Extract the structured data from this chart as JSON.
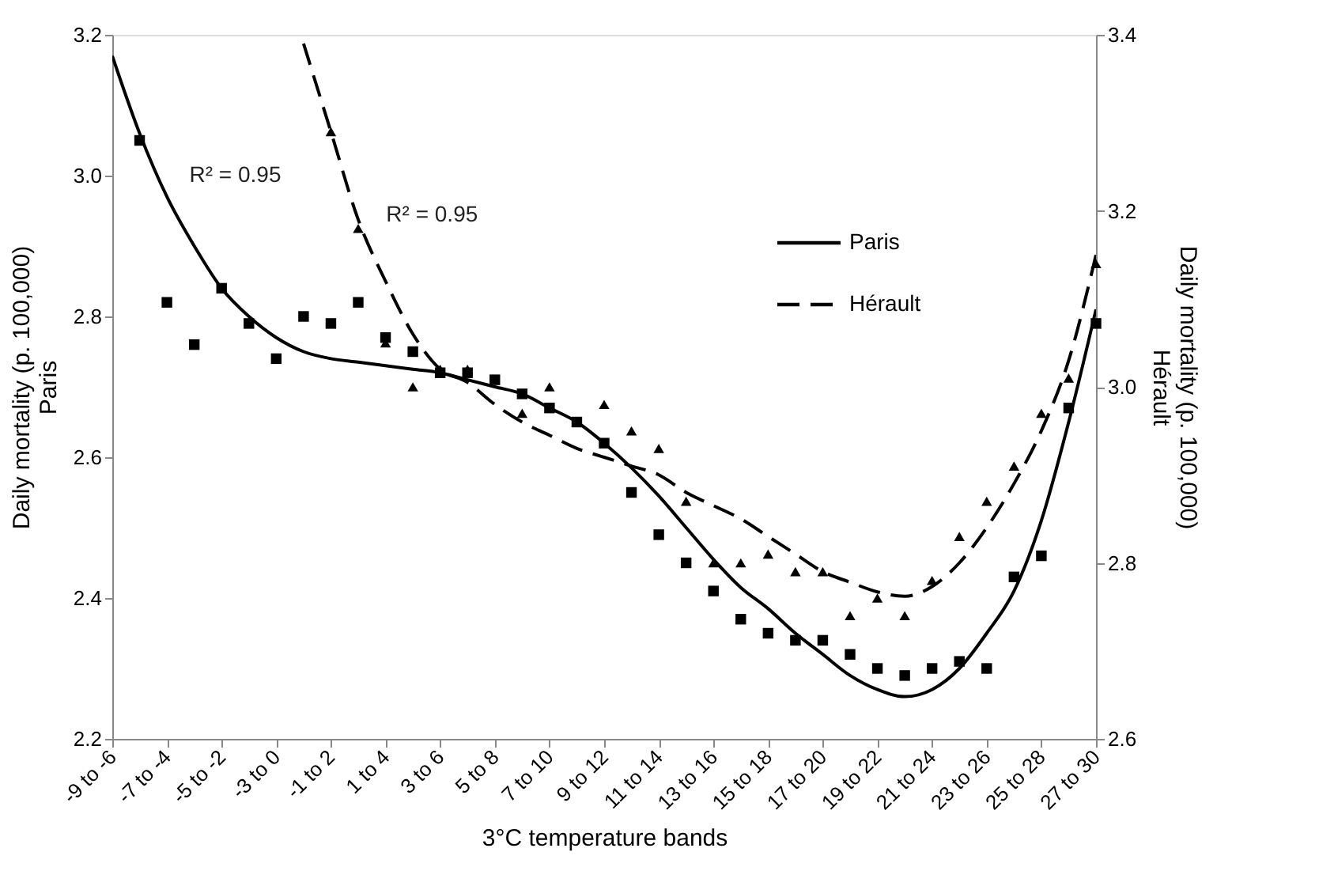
{
  "chart_data": {
    "type": "scatter",
    "xlabel": "3°C temperature bands",
    "ylabel": "Daily mortality (p. 100,000)\nParis",
    "y2label": "Daily mortality (p. 100,000)\nHérault",
    "categories": [
      "-9 to -6",
      null,
      "-7 to -4",
      null,
      "-5 to -2",
      null,
      "-3 to 0",
      null,
      "-1 to 2",
      null,
      "1 to 4",
      null,
      "3 to 6",
      null,
      "5 to 8",
      null,
      "7 to 10",
      null,
      "9 to 12",
      null,
      "11 to 14",
      null,
      "13 to 16",
      null,
      "15 to 18",
      null,
      "17 to 20",
      null,
      "19 to 22",
      null,
      "21 to 24",
      null,
      "23 to 26",
      null,
      "25 to 28",
      null,
      "27 to 30"
    ],
    "ylim": [
      2.2,
      3.2
    ],
    "yticks": [
      2.2,
      2.4,
      2.6,
      2.8,
      {
        "value": 3,
        "label": "3.0"
      },
      3.2
    ],
    "y2lim": [
      2.6,
      3.4
    ],
    "y2ticks": [
      2.6,
      2.8,
      {
        "value": 3,
        "label": "3.0"
      },
      3.2,
      3.4
    ],
    "grid": false,
    "legend": "top right",
    "annotations": [
      "R² = 0.95",
      "R² = 0.95"
    ],
    "series": [
      {
        "marker": "square",
        "color": "#000000",
        "values": [
          null,
          3.05,
          2.82,
          2.76,
          2.84,
          2.79,
          2.74,
          2.8,
          2.79,
          2.82,
          2.77,
          2.75,
          2.72,
          2.72,
          2.71,
          2.69,
          2.67,
          2.65,
          2.62,
          2.55,
          2.49,
          2.45,
          2.41,
          2.37,
          2.35,
          2.34,
          2.34,
          2.32,
          2.3,
          2.29,
          2.3,
          2.31,
          2.3,
          2.43,
          2.46,
          2.67,
          2.79
        ]
      },
      {
        "marker": "triangle",
        "axis": "y2",
        "color": "#000000",
        "values": [
          null,
          null,
          null,
          null,
          null,
          null,
          null,
          null,
          3.29,
          3.18,
          3.05,
          3.0,
          3.02,
          3.02,
          null,
          2.97,
          3.0,
          null,
          2.98,
          2.95,
          2.93,
          2.87,
          2.8,
          2.8,
          2.81,
          2.79,
          2.79,
          2.74,
          2.76,
          2.74,
          2.78,
          2.83,
          2.87,
          2.91,
          2.97,
          3.01,
          3.14
        ]
      },
      {
        "type": "line",
        "name": "Paris",
        "marker": "none",
        "line_style": "solid",
        "color": "#000000",
        "values": [
          3.17,
          3.06,
          2.97,
          2.9,
          2.84,
          2.8,
          2.77,
          2.75,
          2.74,
          2.735,
          2.73,
          2.725,
          2.72,
          2.71,
          2.7,
          2.69,
          2.67,
          2.65,
          2.62,
          2.585,
          2.545,
          2.5,
          2.455,
          2.415,
          2.385,
          2.35,
          2.32,
          2.29,
          2.27,
          2.26,
          2.27,
          2.3,
          2.35,
          2.41,
          2.51,
          2.65,
          2.81
        ]
      },
      {
        "type": "line",
        "name": "Hérault",
        "marker": "none",
        "line_style": "dashed",
        "axis": "y2",
        "color": "#000000",
        "values": [
          null,
          null,
          null,
          null,
          null,
          null,
          null,
          3.39,
          3.29,
          3.19,
          3.12,
          3.06,
          3.02,
          3.005,
          2.98,
          2.96,
          2.945,
          2.93,
          2.92,
          2.91,
          2.9,
          2.88,
          2.865,
          2.85,
          2.83,
          2.81,
          2.79,
          2.778,
          2.767,
          2.762,
          2.773,
          2.8,
          2.84,
          2.89,
          2.95,
          3.03,
          3.15
        ]
      }
    ]
  }
}
